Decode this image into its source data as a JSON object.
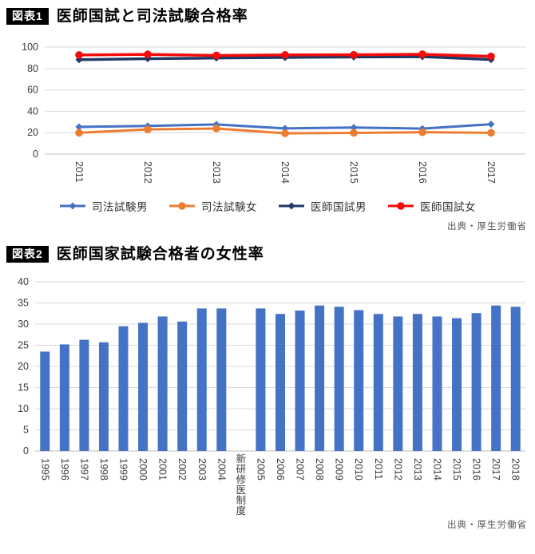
{
  "figure1": {
    "badge": "図表1",
    "title": "医師国試と司法試験合格率",
    "source": "出典・厚生労働省"
  },
  "figure2": {
    "badge": "図表2",
    "title": "医師国家試験合格者の女性率",
    "source": "出典・厚生労働省"
  },
  "colors": {
    "bar_blue": "#4472c4",
    "line_blue": "#4472c4",
    "line_orange": "#ed7d31",
    "line_navy": "#1f3864",
    "line_red": "#f40b0b",
    "gridline": "#d9d9d9",
    "axis_line": "#bfbfbf",
    "tick_label": "#3b3b3b",
    "source_text": "#595959"
  },
  "chart_data": [
    {
      "type": "line",
      "title": "医師国試と司法試験合格率",
      "categories": [
        "2011",
        "2012",
        "2013",
        "2014",
        "2015",
        "2016",
        "2017"
      ],
      "series": [
        {
          "name": "司法試験男",
          "color": "#4472c4",
          "marker": "diamond",
          "stroke_width": 3,
          "values": [
            25.4,
            26.3,
            27.7,
            24.0,
            24.8,
            23.8,
            27.9
          ]
        },
        {
          "name": "司法試験女",
          "color": "#ed7d31",
          "marker": "circle",
          "stroke_width": 3,
          "values": [
            19.9,
            23.0,
            23.9,
            19.4,
            19.8,
            20.4,
            19.9
          ]
        },
        {
          "name": "医師国試男",
          "color": "#1f3864",
          "marker": "diamond",
          "stroke_width": 3.5,
          "values": [
            88.2,
            89.2,
            89.8,
            90.3,
            90.8,
            91.0,
            88.3
          ]
        },
        {
          "name": "医師国試女",
          "color": "#f40b0b",
          "marker": "circle",
          "stroke_width": 3.5,
          "values": [
            92.6,
            93.2,
            92.2,
            92.7,
            92.8,
            93.3,
            91.3
          ]
        }
      ],
      "xlabel": "",
      "ylabel": "",
      "ylim": [
        0,
        100
      ],
      "ytick": 20,
      "grid": true,
      "legend_position": "bottom"
    },
    {
      "type": "bar",
      "title": "医師国家試験合格者の女性率",
      "categories": [
        "1995",
        "1996",
        "1997",
        "1998",
        "1999",
        "2000",
        "2001",
        "2002",
        "2003",
        "2004",
        "新研修医制度",
        "2005",
        "2006",
        "2007",
        "2008",
        "2009",
        "2010",
        "2011",
        "2012",
        "2013",
        "2014",
        "2015",
        "2016",
        "2017",
        "2018"
      ],
      "values": [
        23.5,
        25.2,
        26.3,
        25.7,
        29.5,
        30.3,
        31.8,
        30.6,
        33.7,
        33.7,
        null,
        33.7,
        32.4,
        33.2,
        34.4,
        34.1,
        33.3,
        32.4,
        31.8,
        32.4,
        31.8,
        31.4,
        32.6,
        34.4,
        34.1
      ],
      "bar_color": "#4472c4",
      "xlabel": "",
      "ylabel": "",
      "ylim": [
        0,
        40
      ],
      "ytick": 5,
      "grid": true,
      "legend_position": "none"
    }
  ]
}
